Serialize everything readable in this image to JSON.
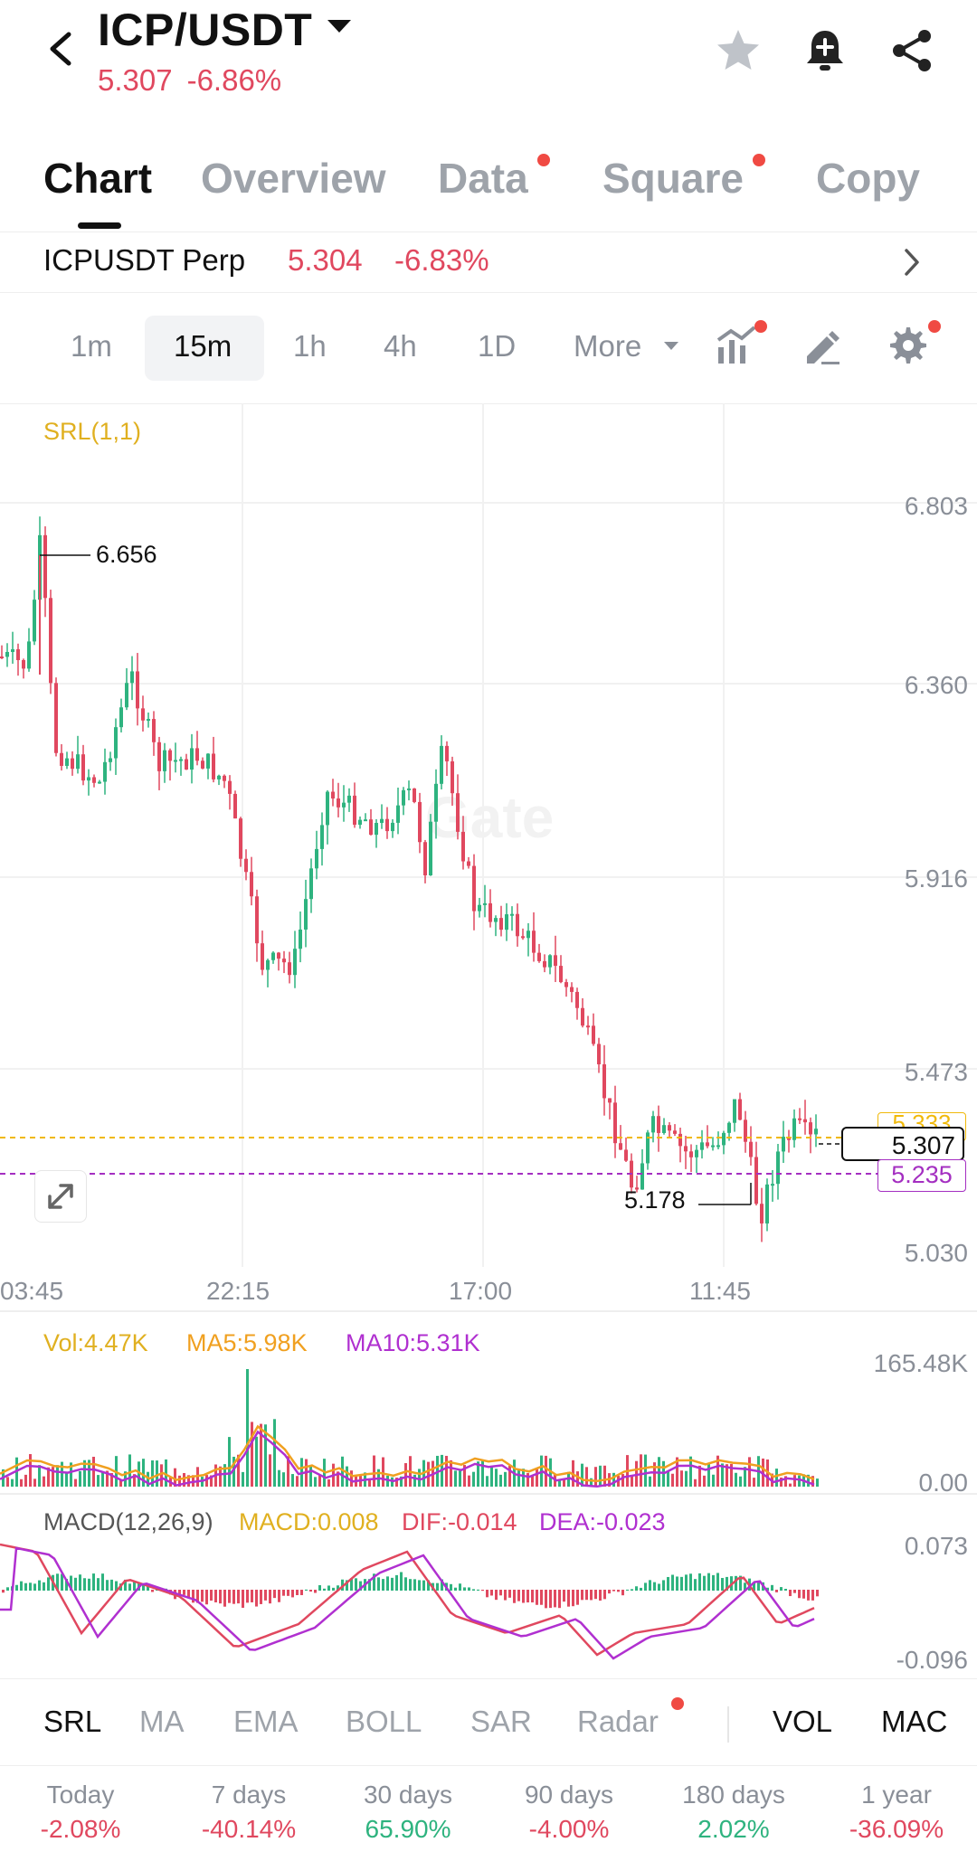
{
  "header": {
    "pair": "ICP/USDT",
    "price": "5.307",
    "change": "-6.86%"
  },
  "tabs": [
    {
      "label": "Chart",
      "active": true,
      "dot": false
    },
    {
      "label": "Overview",
      "active": false,
      "dot": false
    },
    {
      "label": "Data",
      "active": false,
      "dot": true
    },
    {
      "label": "Square",
      "active": false,
      "dot": true
    },
    {
      "label": "Copy",
      "active": false,
      "dot": false
    }
  ],
  "perp": {
    "name": "ICPUSDT Perp",
    "price": "5.304",
    "change": "-6.83%"
  },
  "timeframes": [
    "1m",
    "15m",
    "1h",
    "4h",
    "1D"
  ],
  "timeframe_more": "More",
  "selected_timeframe": "15m",
  "chart": {
    "indicator_label": "SRL(1,1)",
    "watermark": "Gate",
    "y_labels": [
      "6.803",
      "6.360",
      "5.916",
      "5.473",
      "5.030"
    ],
    "x_labels": [
      "03:45",
      "22:15",
      "17:00",
      "11:45"
    ],
    "high_label": "6.656",
    "low_label": "5.178",
    "current_price": "5.307",
    "srl_price": "5.235",
    "upper_tag_partial": "5.333"
  },
  "volume": {
    "vol": "Vol:4.47K",
    "ma5": "MA5:5.98K",
    "ma10": "MA10:5.31K",
    "y_max": "165.48K",
    "y_min": "0.00"
  },
  "macd": {
    "label": "MACD(12,26,9)",
    "macd": "MACD:0.008",
    "dif": "DIF:-0.014",
    "dea": "DEA:-0.023",
    "y_max": "0.073",
    "y_min": "-0.096"
  },
  "indicators": [
    {
      "label": "SRL",
      "active": true
    },
    {
      "label": "MA",
      "active": false
    },
    {
      "label": "EMA",
      "active": false
    },
    {
      "label": "BOLL",
      "active": false
    },
    {
      "label": "SAR",
      "active": false
    },
    {
      "label": "Radar",
      "active": false,
      "dot": true
    },
    {
      "label": "VOL",
      "active": true
    },
    {
      "label": "MAC",
      "active": true
    }
  ],
  "stats": [
    {
      "label": "Today",
      "value": "-2.08%",
      "color": "#e0485f"
    },
    {
      "label": "7 days",
      "value": "-40.14%",
      "color": "#e0485f"
    },
    {
      "label": "30 days",
      "value": "65.90%",
      "color": "#2eb37f"
    },
    {
      "label": "90 days",
      "value": "-4.00%",
      "color": "#e0485f"
    },
    {
      "label": "180 days",
      "value": "2.02%",
      "color": "#2eb37f"
    },
    {
      "label": "1 year",
      "value": "-36.09%",
      "color": "#e0485f"
    }
  ],
  "colors": {
    "up": "#2eb37f",
    "down": "#e0485f",
    "srl_yellow": "#f0b90b",
    "srl_purple": "#a42fc1",
    "ma5": "#f0a020",
    "ma10": "#b030d0"
  }
}
